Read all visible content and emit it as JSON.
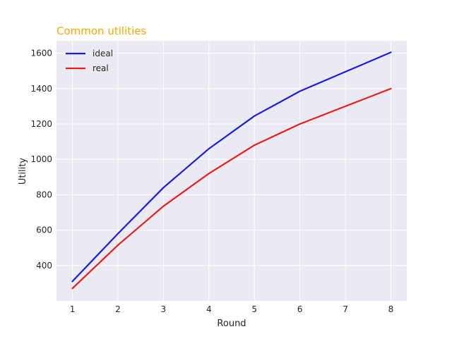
{
  "chart_data": {
    "type": "line",
    "title": "Common utilities",
    "xlabel": "Round",
    "ylabel": "Utility",
    "x": [
      1,
      2,
      3,
      4,
      5,
      6,
      7,
      8
    ],
    "xlim": [
      0.65,
      8.35
    ],
    "ylim": [
      200,
      1670
    ],
    "xticks": [
      1,
      2,
      3,
      4,
      5,
      6,
      7,
      8
    ],
    "yticks": [
      400,
      600,
      800,
      1000,
      1200,
      1400,
      1600
    ],
    "grid": true,
    "legend_position": "top-left",
    "series": [
      {
        "name": "ideal",
        "color": "#1a1aee",
        "values": [
          310,
          580,
          840,
          1060,
          1245,
          1385,
          1495,
          1605
        ]
      },
      {
        "name": "real",
        "color": "#ee1a1a",
        "values": [
          270,
          515,
          735,
          920,
          1080,
          1200,
          1300,
          1400
        ]
      }
    ],
    "colors": {
      "title": "#ffa500",
      "plot_background": "#eaeaf2",
      "grid": "#ffffff",
      "text": "#262626"
    }
  }
}
